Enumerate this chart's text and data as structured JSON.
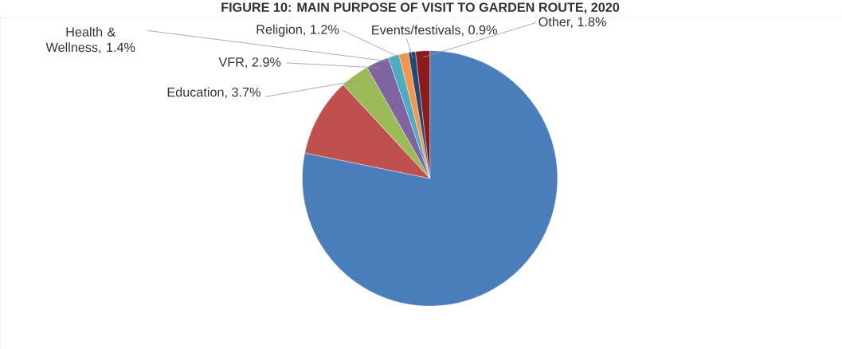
{
  "chart_data": {
    "type": "pie",
    "title": "FIGURE 10: MAIN PURPOSE OF VISIT TO GARDEN ROUTE, 2020",
    "categories": [
      null,
      null,
      null,
      null,
      null,
      null,
      null,
      null
    ],
    "values": [
      78.2,
      9.9,
      3.7,
      2.9,
      1.4,
      1.2,
      0.9,
      1.8
    ],
    "value_labels": [
      null,
      null,
      "Education, 3.7%",
      "VFR, 2.9%",
      "Health & Wellness, 1.4%",
      "Religion, 1.2%",
      "Events/festivals, 0.9%",
      "Other, 1.8%"
    ],
    "colors": [
      "#4a7ebb",
      "#c0504d",
      "#9bbb59",
      "#8064a2",
      "#4bacc6",
      "#f79646",
      "#1f497d",
      "#8b1a1a"
    ]
  }
}
